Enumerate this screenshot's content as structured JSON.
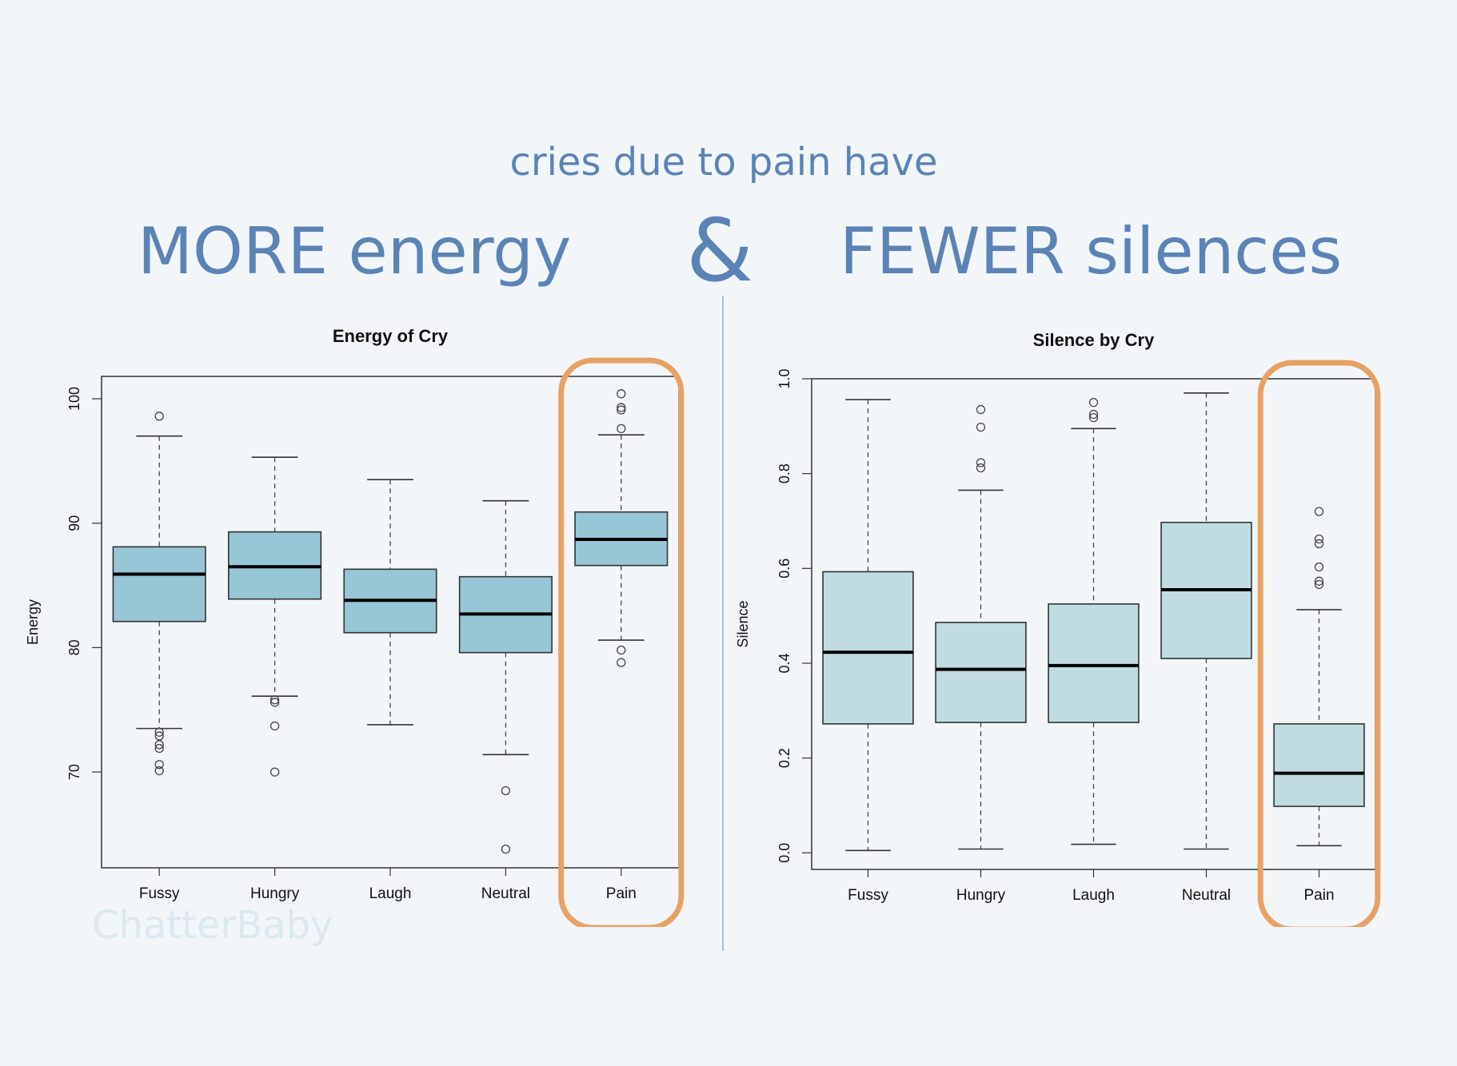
{
  "header": {
    "subtitle": "cries due to pain have",
    "left_headline": "MORE energy",
    "ampersand": "&",
    "right_headline": "FEWER silences"
  },
  "watermark": "ChatterBaby",
  "colors": {
    "headline": "#5b83b5",
    "energy_box": "#97c6d6",
    "silence_box": "#c0dce1",
    "highlight": "#e8a165",
    "divider": "#a8c0d8"
  },
  "chart_data": [
    {
      "type": "box",
      "title": "Energy of Cry",
      "xlabel": "",
      "ylabel": "Energy",
      "categories": [
        "Fussy",
        "Hungry",
        "Laugh",
        "Neutral",
        "Pain"
      ],
      "ylim": [
        62.3,
        101.8
      ],
      "yticks": [
        70,
        80,
        90,
        100
      ],
      "highlight": "Pain",
      "boxes": [
        {
          "category": "Fussy",
          "whisker_low": 73.5,
          "q1": 82.1,
          "median": 85.9,
          "q3": 88.1,
          "whisker_high": 97.0,
          "outliers": [
            98.6,
            73.2,
            72.9,
            72.2,
            71.9,
            70.6,
            70.1
          ]
        },
        {
          "category": "Hungry",
          "whisker_low": 76.1,
          "q1": 83.9,
          "median": 86.5,
          "q3": 89.3,
          "whisker_high": 95.3,
          "outliers": [
            75.8,
            75.6,
            73.7,
            70.0
          ]
        },
        {
          "category": "Laugh",
          "whisker_low": 73.8,
          "q1": 81.2,
          "median": 83.8,
          "q3": 86.3,
          "whisker_high": 93.5,
          "outliers": []
        },
        {
          "category": "Neutral",
          "whisker_low": 71.4,
          "q1": 79.6,
          "median": 82.7,
          "q3": 85.7,
          "whisker_high": 91.8,
          "outliers": [
            68.5,
            63.8
          ]
        },
        {
          "category": "Pain",
          "whisker_low": 80.6,
          "q1": 86.6,
          "median": 88.7,
          "q3": 90.9,
          "whisker_high": 97.1,
          "outliers": [
            100.4,
            99.3,
            99.1,
            97.6,
            79.8,
            78.8
          ]
        }
      ]
    },
    {
      "type": "box",
      "title": "Silence by Cry",
      "xlabel": "",
      "ylabel": "Silence",
      "categories": [
        "Fussy",
        "Hungry",
        "Laugh",
        "Neutral",
        "Pain"
      ],
      "ylim": [
        -0.035,
        1.0
      ],
      "yticks": [
        "0.0",
        "0.2",
        "0.4",
        "0.6",
        "0.8",
        "1.0"
      ],
      "highlight": "Pain",
      "boxes": [
        {
          "category": "Fussy",
          "whisker_low": 0.005,
          "q1": 0.272,
          "median": 0.423,
          "q3": 0.593,
          "whisker_high": 0.956,
          "outliers": []
        },
        {
          "category": "Hungry",
          "whisker_low": 0.008,
          "q1": 0.275,
          "median": 0.387,
          "q3": 0.486,
          "whisker_high": 0.765,
          "outliers": [
            0.935,
            0.898,
            0.823,
            0.812
          ]
        },
        {
          "category": "Laugh",
          "whisker_low": 0.018,
          "q1": 0.275,
          "median": 0.395,
          "q3": 0.525,
          "whisker_high": 0.895,
          "outliers": [
            0.95,
            0.925,
            0.918
          ]
        },
        {
          "category": "Neutral",
          "whisker_low": 0.008,
          "q1": 0.41,
          "median": 0.555,
          "q3": 0.697,
          "whisker_high": 0.97,
          "outliers": []
        },
        {
          "category": "Pain",
          "whisker_low": 0.015,
          "q1": 0.098,
          "median": 0.168,
          "q3": 0.272,
          "whisker_high": 0.513,
          "outliers": [
            0.72,
            0.662,
            0.652,
            0.603,
            0.573,
            0.566
          ]
        }
      ]
    }
  ]
}
